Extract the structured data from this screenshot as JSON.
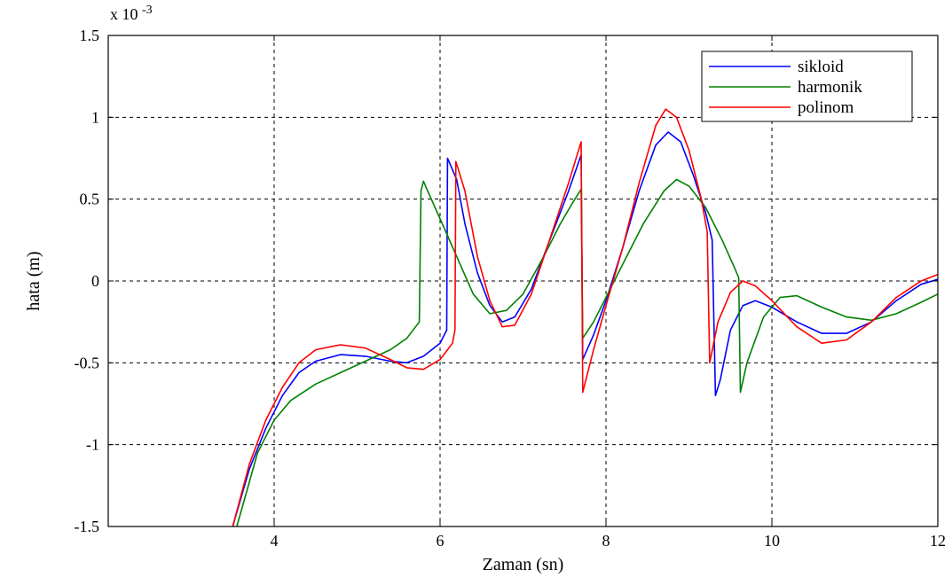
{
  "chart_data": {
    "type": "line",
    "xlabel": "Zaman (sn)",
    "ylabel": "hata (m)",
    "y_multiplier_text": "x 10",
    "y_multiplier_exp": "-3",
    "xlim": [
      2.0,
      12.0
    ],
    "ylim": [
      -1.5,
      1.5
    ],
    "x_ticks": [
      4,
      6,
      8,
      10,
      12
    ],
    "x_tick_labels": [
      "4",
      "6",
      "8",
      "10",
      "12"
    ],
    "y_ticks": [
      -1.5,
      -1.0,
      -0.5,
      0.0,
      0.5,
      1.0,
      1.5
    ],
    "y_tick_labels": [
      "-1.5",
      "-1",
      "-0.5",
      "0",
      "0.5",
      "1",
      "1.5"
    ],
    "grid": true,
    "legend_position": "top-right",
    "series": [
      {
        "name": "sikloid",
        "color": "#0000ff",
        "points": [
          [
            3.5,
            -1.5
          ],
          [
            3.7,
            -1.15
          ],
          [
            3.9,
            -0.9
          ],
          [
            4.1,
            -0.7
          ],
          [
            4.3,
            -0.56
          ],
          [
            4.5,
            -0.49
          ],
          [
            4.8,
            -0.45
          ],
          [
            5.1,
            -0.46
          ],
          [
            5.4,
            -0.49
          ],
          [
            5.6,
            -0.5
          ],
          [
            5.8,
            -0.46
          ],
          [
            6.0,
            -0.38
          ],
          [
            6.08,
            -0.3
          ],
          [
            6.09,
            0.75
          ],
          [
            6.2,
            0.62
          ],
          [
            6.3,
            0.35
          ],
          [
            6.45,
            0.05
          ],
          [
            6.6,
            -0.15
          ],
          [
            6.75,
            -0.25
          ],
          [
            6.9,
            -0.22
          ],
          [
            7.1,
            -0.05
          ],
          [
            7.3,
            0.22
          ],
          [
            7.55,
            0.55
          ],
          [
            7.7,
            0.77
          ],
          [
            7.72,
            -0.48
          ],
          [
            7.85,
            -0.33
          ],
          [
            8.0,
            -0.12
          ],
          [
            8.2,
            0.2
          ],
          [
            8.4,
            0.55
          ],
          [
            8.6,
            0.83
          ],
          [
            8.75,
            0.91
          ],
          [
            8.9,
            0.85
          ],
          [
            9.05,
            0.65
          ],
          [
            9.2,
            0.42
          ],
          [
            9.28,
            0.25
          ],
          [
            9.32,
            -0.7
          ],
          [
            9.38,
            -0.6
          ],
          [
            9.5,
            -0.3
          ],
          [
            9.65,
            -0.15
          ],
          [
            9.8,
            -0.12
          ],
          [
            10.0,
            -0.16
          ],
          [
            10.3,
            -0.25
          ],
          [
            10.6,
            -0.32
          ],
          [
            10.9,
            -0.32
          ],
          [
            11.2,
            -0.25
          ],
          [
            11.5,
            -0.12
          ],
          [
            11.8,
            -0.02
          ],
          [
            12.0,
            0.01
          ]
        ]
      },
      {
        "name": "harmonik",
        "color": "#008000",
        "points": [
          [
            3.55,
            -1.5
          ],
          [
            3.8,
            -1.05
          ],
          [
            4.0,
            -0.85
          ],
          [
            4.2,
            -0.73
          ],
          [
            4.5,
            -0.63
          ],
          [
            4.8,
            -0.56
          ],
          [
            5.1,
            -0.49
          ],
          [
            5.4,
            -0.42
          ],
          [
            5.6,
            -0.35
          ],
          [
            5.75,
            -0.25
          ],
          [
            5.77,
            0.55
          ],
          [
            5.8,
            0.61
          ],
          [
            5.85,
            0.55
          ],
          [
            6.0,
            0.38
          ],
          [
            6.2,
            0.15
          ],
          [
            6.4,
            -0.08
          ],
          [
            6.6,
            -0.2
          ],
          [
            6.8,
            -0.18
          ],
          [
            7.0,
            -0.08
          ],
          [
            7.25,
            0.15
          ],
          [
            7.45,
            0.35
          ],
          [
            7.6,
            0.48
          ],
          [
            7.7,
            0.56
          ],
          [
            7.72,
            -0.35
          ],
          [
            7.85,
            -0.25
          ],
          [
            8.0,
            -0.1
          ],
          [
            8.2,
            0.1
          ],
          [
            8.45,
            0.35
          ],
          [
            8.7,
            0.55
          ],
          [
            8.85,
            0.62
          ],
          [
            9.0,
            0.58
          ],
          [
            9.2,
            0.45
          ],
          [
            9.4,
            0.25
          ],
          [
            9.55,
            0.08
          ],
          [
            9.6,
            0.02
          ],
          [
            9.62,
            -0.68
          ],
          [
            9.7,
            -0.5
          ],
          [
            9.9,
            -0.22
          ],
          [
            10.1,
            -0.1
          ],
          [
            10.3,
            -0.09
          ],
          [
            10.6,
            -0.16
          ],
          [
            10.9,
            -0.22
          ],
          [
            11.2,
            -0.24
          ],
          [
            11.5,
            -0.2
          ],
          [
            11.8,
            -0.13
          ],
          [
            12.0,
            -0.08
          ]
        ]
      },
      {
        "name": "polinom",
        "color": "#ff0000",
        "points": [
          [
            3.5,
            -1.5
          ],
          [
            3.7,
            -1.12
          ],
          [
            3.9,
            -0.85
          ],
          [
            4.1,
            -0.65
          ],
          [
            4.3,
            -0.5
          ],
          [
            4.5,
            -0.42
          ],
          [
            4.8,
            -0.39
          ],
          [
            5.1,
            -0.41
          ],
          [
            5.4,
            -0.48
          ],
          [
            5.6,
            -0.53
          ],
          [
            5.8,
            -0.54
          ],
          [
            6.0,
            -0.48
          ],
          [
            6.15,
            -0.38
          ],
          [
            6.18,
            -0.3
          ],
          [
            6.19,
            0.73
          ],
          [
            6.3,
            0.55
          ],
          [
            6.45,
            0.15
          ],
          [
            6.6,
            -0.12
          ],
          [
            6.75,
            -0.28
          ],
          [
            6.9,
            -0.27
          ],
          [
            7.1,
            -0.08
          ],
          [
            7.3,
            0.22
          ],
          [
            7.55,
            0.6
          ],
          [
            7.7,
            0.85
          ],
          [
            7.72,
            -0.68
          ],
          [
            7.85,
            -0.42
          ],
          [
            8.0,
            -0.15
          ],
          [
            8.2,
            0.2
          ],
          [
            8.4,
            0.6
          ],
          [
            8.6,
            0.95
          ],
          [
            8.72,
            1.05
          ],
          [
            8.85,
            1.0
          ],
          [
            9.0,
            0.8
          ],
          [
            9.15,
            0.5
          ],
          [
            9.22,
            0.3
          ],
          [
            9.25,
            -0.5
          ],
          [
            9.35,
            -0.25
          ],
          [
            9.5,
            -0.07
          ],
          [
            9.65,
            0.0
          ],
          [
            9.8,
            -0.03
          ],
          [
            10.0,
            -0.12
          ],
          [
            10.3,
            -0.28
          ],
          [
            10.6,
            -0.38
          ],
          [
            10.9,
            -0.36
          ],
          [
            11.2,
            -0.25
          ],
          [
            11.5,
            -0.1
          ],
          [
            11.8,
            0.0
          ],
          [
            12.0,
            0.04
          ]
        ]
      }
    ]
  }
}
